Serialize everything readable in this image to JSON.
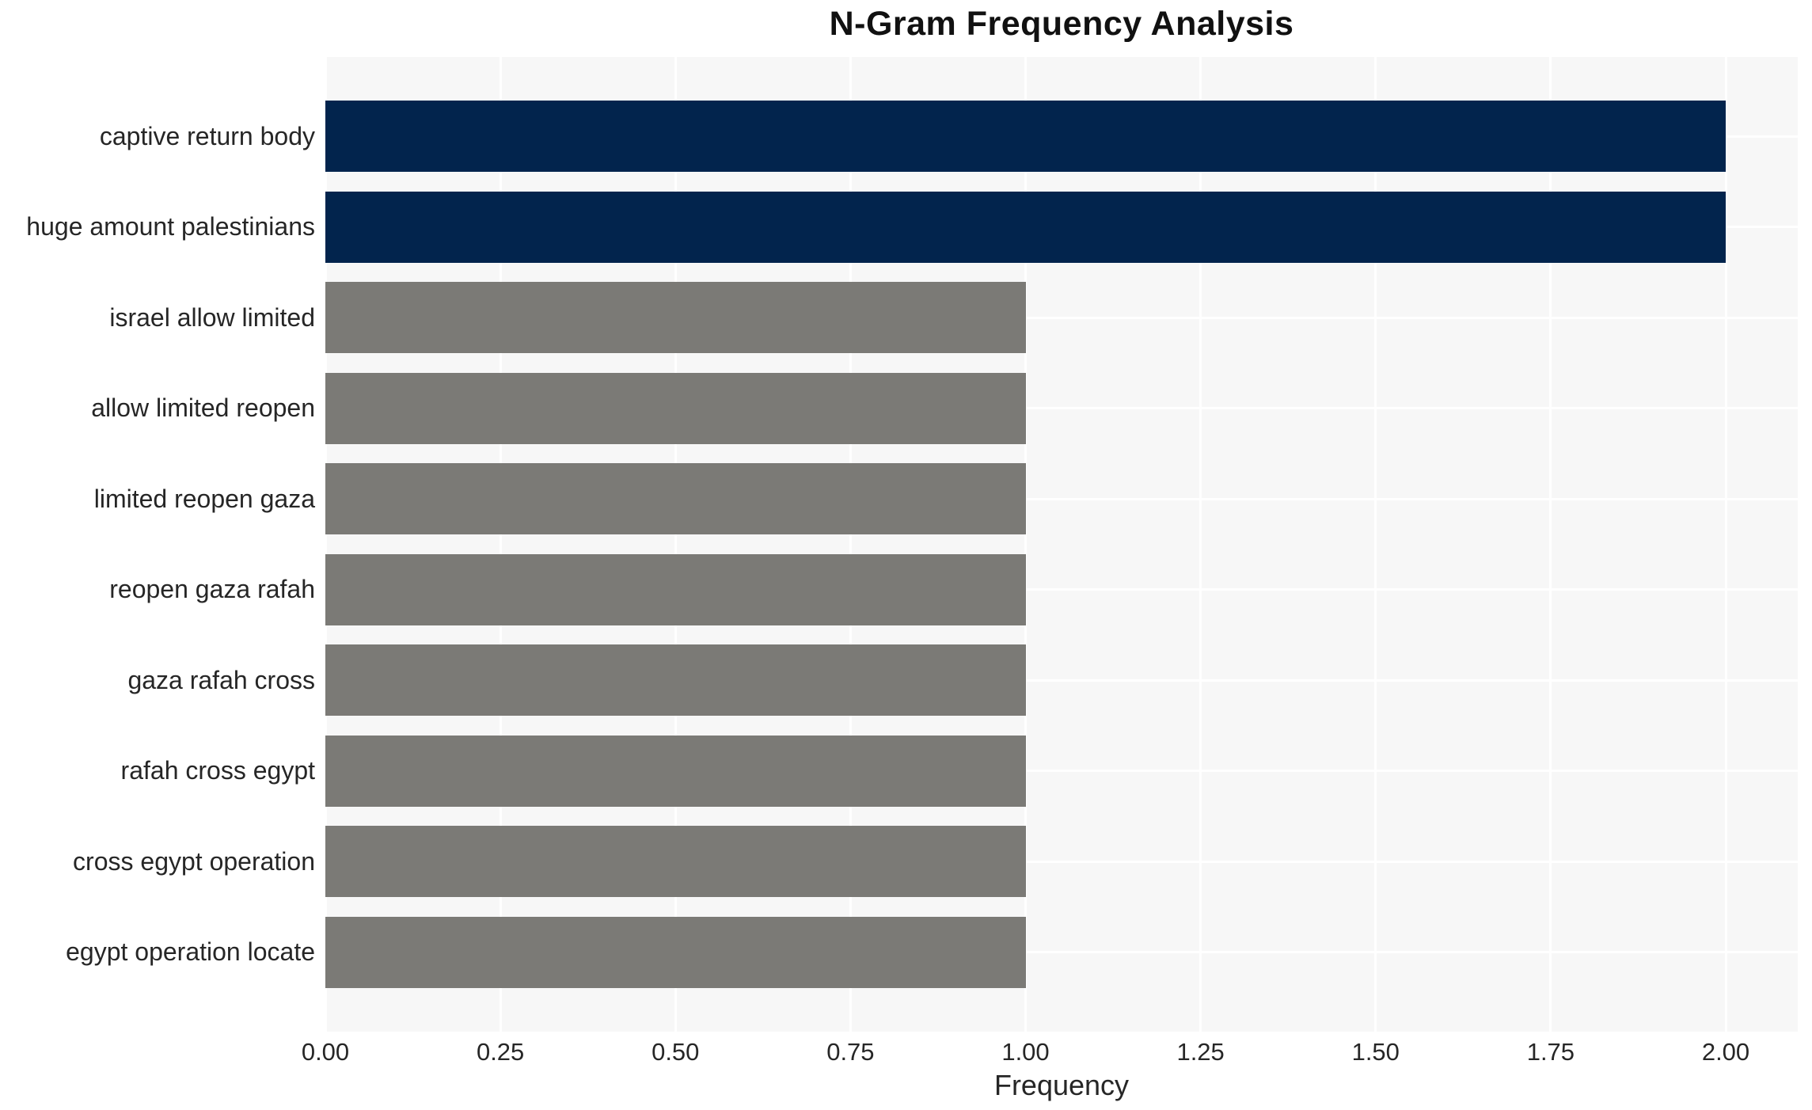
{
  "chart_data": {
    "type": "bar",
    "orientation": "horizontal",
    "title": "N-Gram Frequency Analysis",
    "xlabel": "Frequency",
    "ylabel": "",
    "categories": [
      "captive return body",
      "huge amount palestinians",
      "israel allow limited",
      "allow limited reopen",
      "limited reopen gaza",
      "reopen gaza rafah",
      "gaza rafah cross",
      "rafah cross egypt",
      "cross egypt operation",
      "egypt operation locate"
    ],
    "values": [
      2,
      2,
      1,
      1,
      1,
      1,
      1,
      1,
      1,
      1
    ],
    "bar_colors": [
      "#02244d",
      "#02244d",
      "#7b7a76",
      "#7b7a76",
      "#7b7a76",
      "#7b7a76",
      "#7b7a76",
      "#7b7a76",
      "#7b7a76",
      "#7b7a76"
    ],
    "xlim": [
      0,
      2.1
    ],
    "xticks": [
      0,
      0.25,
      0.5,
      0.75,
      1,
      1.25,
      1.5,
      1.75,
      2
    ],
    "xtick_labels": [
      "0.00",
      "0.25",
      "0.50",
      "0.75",
      "1.00",
      "1.25",
      "1.50",
      "1.75",
      "2.00"
    ],
    "grid": true,
    "legend": false,
    "colors": {
      "plot_background": "#f7f7f7",
      "figure_background": "#ffffff",
      "gridline": "#ffffff",
      "tick_text": "#262626",
      "title_text": "#111111"
    }
  }
}
